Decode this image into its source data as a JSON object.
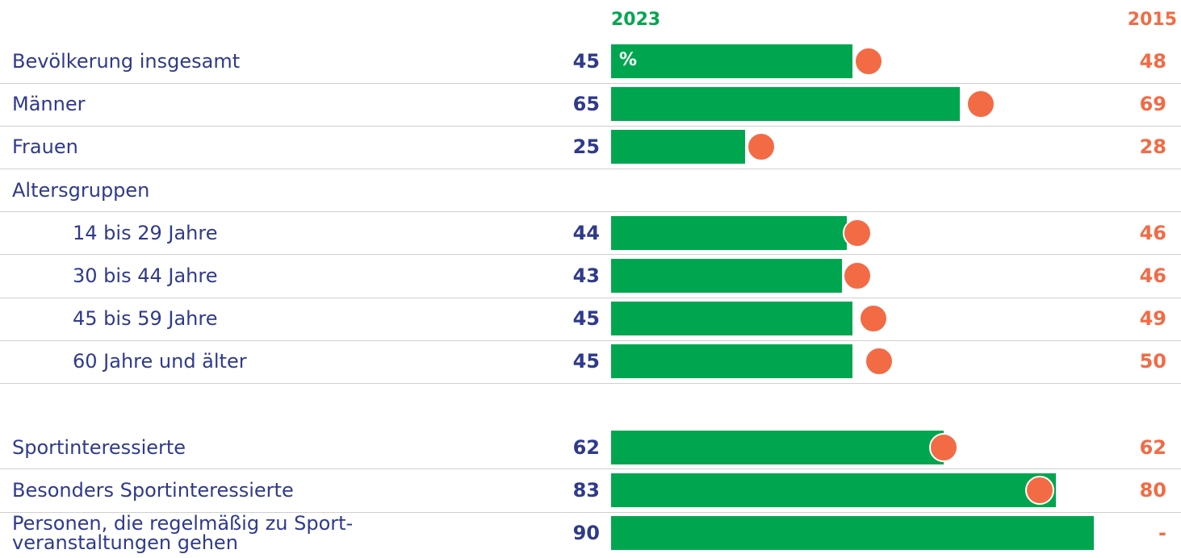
{
  "chart_data": {
    "type": "bar",
    "categories": [
      "Bevölkerung insgesamt",
      "Männer",
      "Frauen",
      "Altersgruppen",
      "14 bis 29 Jahre",
      "30 bis 44 Jahre",
      "45 bis 59 Jahre",
      "60 Jahre und älter",
      null,
      "Sportinteressierte",
      "Besonders Sportinteressierte",
      "Personen, die regelmäßig zu Sport-\nveranstaltungen gehen"
    ],
    "series": [
      {
        "name": "2023",
        "color": "#00a64f",
        "values": [
          45,
          65,
          25,
          null,
          44,
          43,
          45,
          45,
          null,
          62,
          83,
          90
        ]
      },
      {
        "name": "2015",
        "color": "#f26b45",
        "values": [
          48,
          69,
          28,
          null,
          46,
          46,
          49,
          50,
          null,
          62,
          80,
          null
        ],
        "value_labels": [
          "48",
          "69",
          "28",
          null,
          "46",
          "46",
          "49",
          "50",
          null,
          "62",
          "80",
          "-"
        ]
      }
    ],
    "unit": "%",
    "xlim": [
      0,
      100
    ],
    "label_color": "#2f3a8c"
  }
}
